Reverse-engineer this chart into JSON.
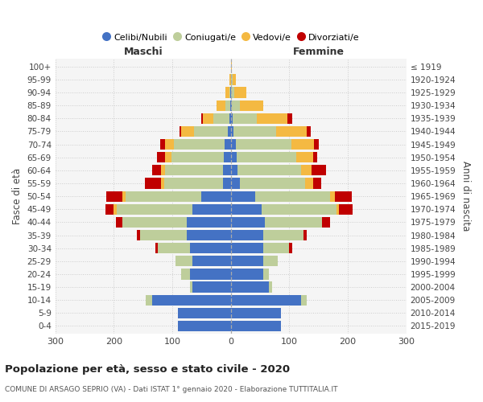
{
  "age_groups": [
    "0-4",
    "5-9",
    "10-14",
    "15-19",
    "20-24",
    "25-29",
    "30-34",
    "35-39",
    "40-44",
    "45-49",
    "50-54",
    "55-59",
    "60-64",
    "65-69",
    "70-74",
    "75-79",
    "80-84",
    "85-89",
    "90-94",
    "95-99",
    "100+"
  ],
  "birth_years": [
    "2015-2019",
    "2010-2014",
    "2005-2009",
    "2000-2004",
    "1995-1999",
    "1990-1994",
    "1985-1989",
    "1980-1984",
    "1975-1979",
    "1970-1974",
    "1965-1969",
    "1960-1964",
    "1955-1959",
    "1950-1954",
    "1945-1949",
    "1940-1944",
    "1935-1939",
    "1930-1934",
    "1925-1929",
    "1920-1924",
    "≤ 1919"
  ],
  "colors": {
    "celibi": "#4472C4",
    "coniugati": "#BECE9B",
    "vedovi": "#F4B942",
    "divorziati": "#C00000"
  },
  "maschi": {
    "celibi": [
      90,
      90,
      135,
      65,
      70,
      65,
      70,
      75,
      75,
      65,
      50,
      14,
      14,
      12,
      10,
      5,
      2,
      1,
      1,
      0,
      0
    ],
    "coniugati": [
      0,
      0,
      10,
      5,
      15,
      30,
      55,
      80,
      110,
      130,
      130,
      100,
      98,
      90,
      88,
      58,
      28,
      8,
      2,
      0,
      0
    ],
    "vedovi": [
      0,
      0,
      0,
      0,
      0,
      0,
      0,
      0,
      0,
      5,
      5,
      5,
      8,
      10,
      15,
      22,
      18,
      15,
      6,
      2,
      0
    ],
    "divorziati": [
      0,
      0,
      0,
      0,
      0,
      0,
      4,
      5,
      12,
      14,
      28,
      28,
      14,
      14,
      8,
      3,
      3,
      0,
      0,
      0,
      0
    ]
  },
  "femmine": {
    "celibi": [
      85,
      85,
      120,
      65,
      55,
      55,
      56,
      56,
      58,
      52,
      42,
      15,
      12,
      10,
      8,
      5,
      3,
      2,
      1,
      1,
      0
    ],
    "coniugati": [
      0,
      0,
      10,
      5,
      10,
      25,
      44,
      68,
      98,
      128,
      128,
      112,
      108,
      102,
      96,
      72,
      42,
      14,
      5,
      2,
      0
    ],
    "vedovi": [
      0,
      0,
      0,
      0,
      0,
      0,
      0,
      0,
      0,
      4,
      8,
      14,
      18,
      28,
      38,
      52,
      52,
      40,
      20,
      6,
      2
    ],
    "divorziati": [
      0,
      0,
      0,
      0,
      0,
      0,
      5,
      5,
      14,
      24,
      28,
      14,
      24,
      8,
      8,
      8,
      8,
      0,
      0,
      0,
      0
    ]
  },
  "xlim": 300,
  "title": "Popolazione per età, sesso e stato civile - 2020",
  "subtitle": "COMUNE DI ARSAGO SEPRIO (VA) - Dati ISTAT 1° gennaio 2020 - Elaborazione TUTTITALIA.IT",
  "ylabel_left": "Fasce di età",
  "ylabel_right": "Anni di nascita",
  "xlabel_maschi": "Maschi",
  "xlabel_femmine": "Femmine",
  "legend_labels": [
    "Celibi/Nubili",
    "Coniugati/e",
    "Vedovi/e",
    "Divorziati/e"
  ],
  "background_color": "#FFFFFF",
  "plot_background": "#F5F5F5",
  "grid_color": "#CCCCCC"
}
